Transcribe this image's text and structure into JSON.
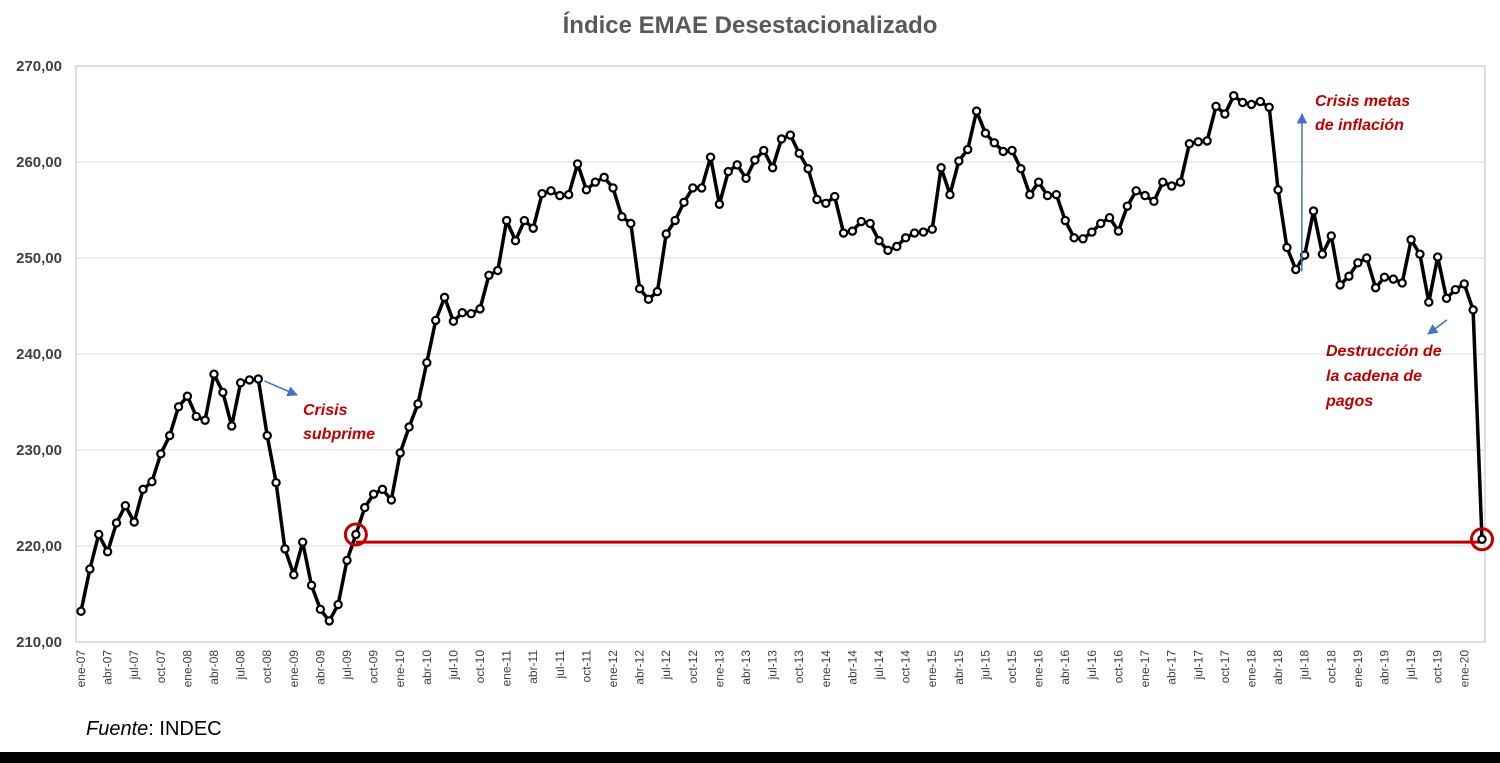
{
  "chart_data": {
    "type": "line",
    "title": "Índice EMAE Desestacionalizado",
    "xlabel": "",
    "ylabel": "",
    "ylim": [
      210,
      270
    ],
    "yticks": [
      "210,00",
      "220,00",
      "230,00",
      "240,00",
      "250,00",
      "260,00",
      "270,00"
    ],
    "grid": "horizontal",
    "legend": "none",
    "x_start": "2007-01",
    "series": [
      {
        "values": [
          213.2,
          217.6,
          221.2,
          219.4,
          222.4,
          224.2,
          222.5,
          225.9,
          226.7,
          229.6,
          231.5,
          234.5,
          235.6,
          233.5,
          233.1,
          237.9,
          236.0,
          232.5,
          237.0,
          237.3,
          237.4,
          231.5,
          226.6,
          219.7,
          217.0,
          220.4,
          215.9,
          213.4,
          212.2,
          213.9,
          218.5,
          221.2,
          224.0,
          225.4,
          225.9,
          224.8,
          229.7,
          232.4,
          234.8,
          239.1,
          243.5,
          245.9,
          243.4,
          244.3,
          244.2,
          244.7,
          248.2,
          248.7,
          253.9,
          251.8,
          253.9,
          253.1,
          256.7,
          257.0,
          256.5,
          256.6,
          259.8,
          257.1,
          257.9,
          258.4,
          257.3,
          254.3,
          253.6,
          246.8,
          245.7,
          246.5,
          252.5,
          253.9,
          255.8,
          257.3,
          257.3,
          260.5,
          255.6,
          259.0,
          259.7,
          258.3,
          260.2,
          261.2,
          259.4,
          262.4,
          262.8,
          260.9,
          259.3,
          256.1,
          255.7,
          256.4,
          252.6,
          252.8,
          253.8,
          253.6,
          251.8,
          250.8,
          251.2,
          252.1,
          252.6,
          252.7,
          253.0,
          259.4,
          256.6,
          260.1,
          261.3,
          265.3,
          263.0,
          262.0,
          261.1,
          261.2,
          259.3,
          256.6,
          257.9,
          256.5,
          256.6,
          253.9,
          252.1,
          252.0,
          252.7,
          253.6,
          254.2,
          252.8,
          255.4,
          257.0,
          256.5,
          255.9,
          257.9,
          257.5,
          257.9,
          261.9,
          262.1,
          262.2,
          265.8,
          265.0,
          266.9,
          266.2,
          266.0,
          266.3,
          265.7,
          257.1,
          251.1,
          248.8,
          250.3,
          254.9,
          250.4,
          252.3,
          247.2,
          248.1,
          249.5,
          250.0,
          246.9,
          248.0,
          247.8,
          247.4,
          251.9,
          250.4,
          245.4,
          250.1,
          245.8,
          246.7,
          247.3,
          244.6,
          220.7
        ]
      }
    ],
    "xtick_labels": [
      "ene-07",
      "abr-07",
      "jul-07",
      "oct-07",
      "ene-08",
      "abr-08",
      "jul-08",
      "oct-08",
      "ene-09",
      "abr-09",
      "jul-09",
      "oct-09",
      "ene-10",
      "abr-10",
      "jul-10",
      "oct-10",
      "ene-11",
      "abr-11",
      "jul-11",
      "oct-11",
      "ene-12",
      "abr-12",
      "jul-12",
      "oct-12",
      "ene-13",
      "abr-13",
      "jul-13",
      "oct-13",
      "ene-14",
      "abr-14",
      "jul-14",
      "oct-14",
      "ene-15",
      "abr-15",
      "jul-15",
      "oct-15",
      "ene-16",
      "abr-16",
      "jul-16",
      "oct-16",
      "ene-17",
      "abr-17",
      "jul-17",
      "oct-17",
      "ene-18",
      "abr-18",
      "jul-18",
      "oct-18",
      "ene-19",
      "abr-19",
      "jul-19",
      "oct-19",
      "ene-20"
    ],
    "reference_line": {
      "value": 220.4,
      "from_index": 31,
      "to_index": 158,
      "color": "#c00000"
    },
    "highlighted_points": [
      31,
      158
    ],
    "annotations": [
      {
        "lines": [
          "Crisis",
          "subprime"
        ],
        "point_index": 20
      },
      {
        "lines": [
          "Crisis metas",
          "de inflación"
        ],
        "point_index": 137
      },
      {
        "lines": [
          "Destrucción de",
          "la cadena de",
          "pagos"
        ],
        "point_index": 157
      }
    ],
    "colors": {
      "line": "#000000",
      "annotation_text": "#c00000",
      "arrow": "#4472c4",
      "grid": "#d9d9d9",
      "highlight": "#c00000"
    }
  },
  "footer": {
    "source_label": "Fuente",
    "source_sep": ":",
    "source_value": " INDEC"
  }
}
